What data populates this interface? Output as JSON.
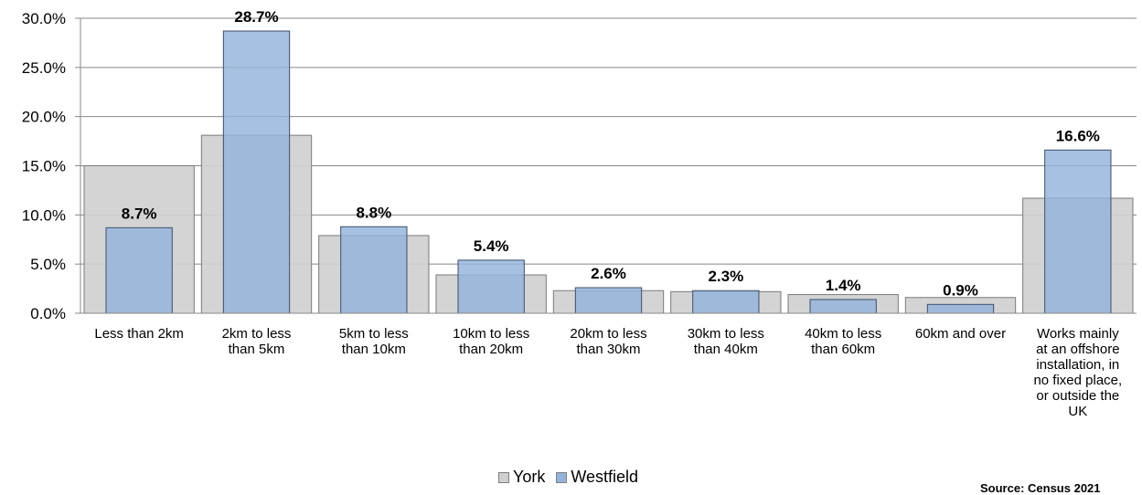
{
  "chart_data": {
    "type": "bar",
    "categories": [
      [
        "Less than 2km"
      ],
      [
        "2km to less",
        "than 5km"
      ],
      [
        "5km to less",
        "than 10km"
      ],
      [
        "10km to less",
        "than 20km"
      ],
      [
        "20km to less",
        "than 30km"
      ],
      [
        "30km to less",
        "than 40km"
      ],
      [
        "40km to less",
        "than 60km"
      ],
      [
        "60km and over"
      ],
      [
        "Works mainly",
        "at an offshore",
        "installation, in",
        "no fixed place,",
        "or outside the",
        "UK"
      ]
    ],
    "series": [
      {
        "name": "York",
        "values": [
          15.0,
          18.1,
          7.9,
          3.9,
          2.3,
          2.2,
          1.9,
          1.6,
          11.7
        ],
        "color": "#d0d0d0"
      },
      {
        "name": "Westfield",
        "values": [
          8.7,
          28.7,
          8.8,
          5.4,
          2.6,
          2.3,
          1.4,
          0.9,
          16.6
        ],
        "color": "#94b3dc"
      }
    ],
    "data_labels": [
      "8.7%",
      "28.7%",
      "8.8%",
      "5.4%",
      "2.6%",
      "2.3%",
      "1.4%",
      "0.9%",
      "16.6%"
    ],
    "y_ticks": [
      "0.0%",
      "5.0%",
      "10.0%",
      "15.0%",
      "20.0%",
      "25.0%",
      "30.0%"
    ],
    "ylim": [
      0,
      30
    ],
    "grid": true,
    "legend_position": "bottom"
  },
  "legend": {
    "york": "York",
    "westfield": "Westfield"
  },
  "source": "Source: Census 2021"
}
